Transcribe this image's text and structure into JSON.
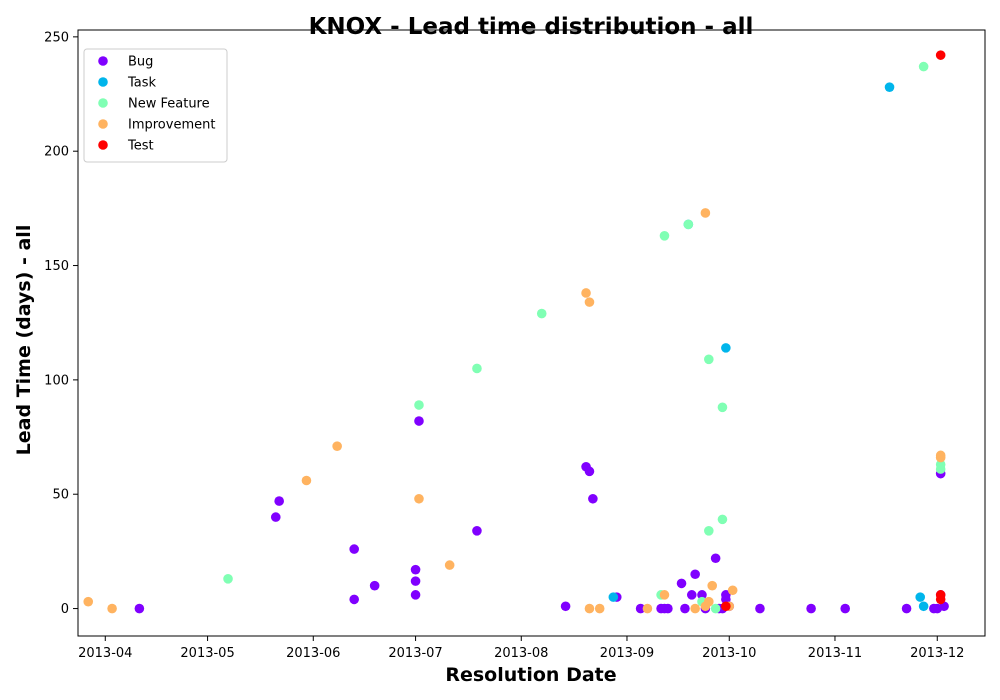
{
  "chart_data": {
    "type": "scatter",
    "title": "KNOX - Lead time distribution - all",
    "xlabel": "Resolution Date",
    "ylabel": "Lead Time (days) - all",
    "xlim": [
      "2013-03-24",
      "2013-12-15"
    ],
    "ylim": [
      -12,
      253
    ],
    "xticks": [
      "2013-04",
      "2013-05",
      "2013-06",
      "2013-07",
      "2013-08",
      "2013-09",
      "2013-10",
      "2013-11",
      "2013-12"
    ],
    "yticks": [
      0,
      50,
      100,
      150,
      200,
      250
    ],
    "grid": false,
    "legend_position": "top-left",
    "series": [
      {
        "name": "Bug",
        "color": "#8000ff",
        "points": [
          [
            "2013-04-11",
            0
          ],
          [
            "2013-05-21",
            40
          ],
          [
            "2013-05-22",
            47
          ],
          [
            "2013-06-13",
            4
          ],
          [
            "2013-06-13",
            26
          ],
          [
            "2013-06-19",
            10
          ],
          [
            "2013-07-01",
            6
          ],
          [
            "2013-07-01",
            12
          ],
          [
            "2013-07-01",
            17
          ],
          [
            "2013-07-02",
            82
          ],
          [
            "2013-07-19",
            34
          ],
          [
            "2013-08-14",
            1
          ],
          [
            "2013-08-20",
            62
          ],
          [
            "2013-08-21",
            60
          ],
          [
            "2013-08-22",
            48
          ],
          [
            "2013-08-29",
            5
          ],
          [
            "2013-09-05",
            0
          ],
          [
            "2013-09-11",
            0
          ],
          [
            "2013-09-12",
            0
          ],
          [
            "2013-09-13",
            0
          ],
          [
            "2013-09-17",
            11
          ],
          [
            "2013-09-18",
            0
          ],
          [
            "2013-09-20",
            6
          ],
          [
            "2013-09-21",
            15
          ],
          [
            "2013-09-23",
            6
          ],
          [
            "2013-09-24",
            0
          ],
          [
            "2013-09-27",
            22
          ],
          [
            "2013-09-28",
            0
          ],
          [
            "2013-09-29",
            0
          ],
          [
            "2013-09-30",
            4
          ],
          [
            "2013-09-30",
            6
          ],
          [
            "2013-10-01",
            1
          ],
          [
            "2013-10-10",
            0
          ],
          [
            "2013-10-25",
            0
          ],
          [
            "2013-11-04",
            0
          ],
          [
            "2013-11-22",
            0
          ],
          [
            "2013-11-30",
            0
          ],
          [
            "2013-12-01",
            0
          ],
          [
            "2013-12-02",
            59
          ],
          [
            "2013-12-02",
            6
          ],
          [
            "2013-12-03",
            1
          ]
        ]
      },
      {
        "name": "Task",
        "color": "#00b5eb",
        "points": [
          [
            "2013-08-28",
            5
          ],
          [
            "2013-09-19",
            168
          ],
          [
            "2013-09-30",
            114
          ],
          [
            "2013-11-17",
            228
          ],
          [
            "2013-11-26",
            5
          ],
          [
            "2013-11-27",
            1
          ]
        ]
      },
      {
        "name": "New Feature",
        "color": "#80ffb4",
        "points": [
          [
            "2013-05-07",
            13
          ],
          [
            "2013-07-02",
            89
          ],
          [
            "2013-07-19",
            105
          ],
          [
            "2013-08-07",
            129
          ],
          [
            "2013-09-12",
            163
          ],
          [
            "2013-09-11",
            6
          ],
          [
            "2013-09-19",
            168
          ],
          [
            "2013-09-23",
            3
          ],
          [
            "2013-09-25",
            34
          ],
          [
            "2013-09-25",
            109
          ],
          [
            "2013-09-27",
            0
          ],
          [
            "2013-09-29",
            39
          ],
          [
            "2013-09-29",
            88
          ],
          [
            "2013-11-27",
            237
          ],
          [
            "2013-12-02",
            63
          ],
          [
            "2013-12-02",
            61
          ]
        ]
      },
      {
        "name": "Improvement",
        "color": "#ffb360",
        "points": [
          [
            "2013-03-27",
            3
          ],
          [
            "2013-04-03",
            0
          ],
          [
            "2013-05-30",
            56
          ],
          [
            "2013-06-08",
            71
          ],
          [
            "2013-07-02",
            48
          ],
          [
            "2013-07-11",
            19
          ],
          [
            "2013-08-20",
            138
          ],
          [
            "2013-08-21",
            134
          ],
          [
            "2013-08-21",
            0
          ],
          [
            "2013-08-24",
            0
          ],
          [
            "2013-09-07",
            0
          ],
          [
            "2013-09-12",
            6
          ],
          [
            "2013-09-21",
            0
          ],
          [
            "2013-09-24",
            1
          ],
          [
            "2013-09-24",
            173
          ],
          [
            "2013-09-25",
            3
          ],
          [
            "2013-09-26",
            10
          ],
          [
            "2013-10-02",
            8
          ],
          [
            "2013-10-01",
            1
          ],
          [
            "2013-12-02",
            67
          ],
          [
            "2013-12-02",
            66
          ]
        ]
      },
      {
        "name": "Test",
        "color": "#ff0000",
        "points": [
          [
            "2013-12-02",
            242
          ],
          [
            "2013-09-30",
            1
          ],
          [
            "2013-12-02",
            6
          ],
          [
            "2013-12-02",
            4
          ]
        ]
      }
    ]
  }
}
